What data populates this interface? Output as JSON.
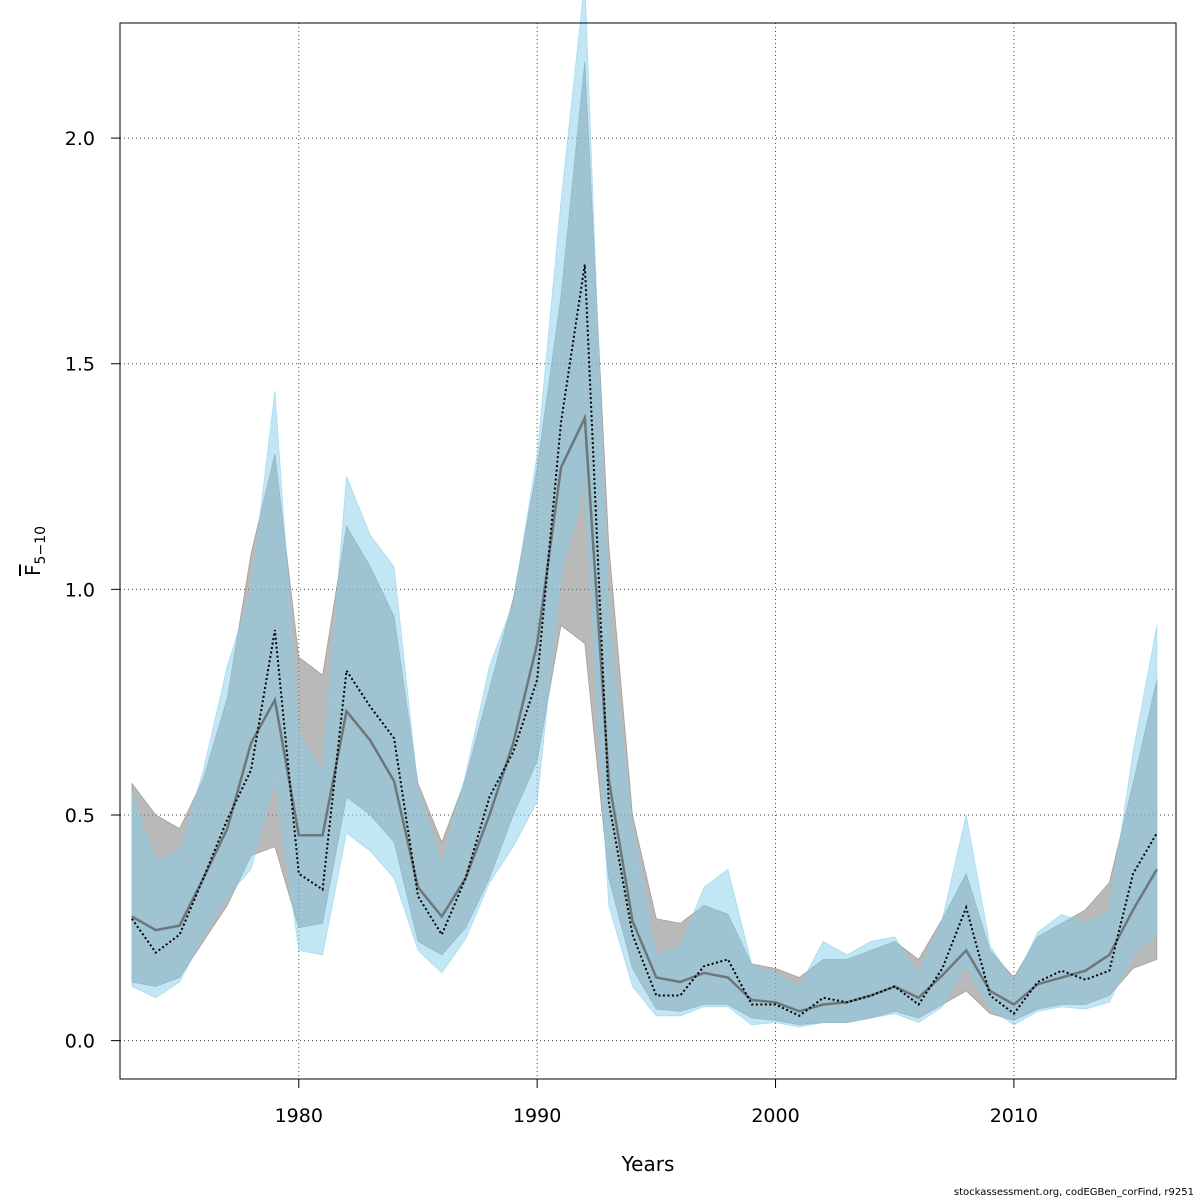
{
  "chart_data": {
    "type": "area",
    "title": "",
    "xlabel": "Years",
    "ylabel": {
      "symbol": "F",
      "subscript": "5−10"
    },
    "xlim": [
      1972.5,
      2016.8
    ],
    "ylim": [
      -0.085,
      2.255
    ],
    "xticks": [
      1980,
      1990,
      2000,
      2010
    ],
    "yticks": [
      0.0,
      0.5,
      1.0,
      1.5,
      2.0
    ],
    "ytick_labels": [
      "0.0",
      "0.5",
      "1.0",
      "1.5",
      "2.0"
    ],
    "grid": true,
    "x": [
      1973,
      1974,
      1975,
      1976,
      1977,
      1978,
      1979,
      1980,
      1981,
      1982,
      1983,
      1984,
      1985,
      1986,
      1987,
      1988,
      1989,
      1990,
      1991,
      1992,
      1993,
      1994,
      1995,
      1996,
      1997,
      1998,
      1999,
      2000,
      2001,
      2002,
      2003,
      2004,
      2005,
      2006,
      2007,
      2008,
      2009,
      2010,
      2011,
      2012,
      2013,
      2014,
      2015,
      2016
    ],
    "series": [
      {
        "name": "",
        "style": "solid",
        "color": "#555555",
        "band_color": "#808080",
        "estimate": [
          0.275,
          0.245,
          0.255,
          0.36,
          0.47,
          0.66,
          0.755,
          0.455,
          0.455,
          0.73,
          0.665,
          0.575,
          0.34,
          0.275,
          0.36,
          0.5,
          0.66,
          0.88,
          1.27,
          1.38,
          0.58,
          0.265,
          0.14,
          0.13,
          0.15,
          0.14,
          0.09,
          0.085,
          0.065,
          0.08,
          0.085,
          0.1,
          0.12,
          0.095,
          0.145,
          0.2,
          0.11,
          0.08,
          0.125,
          0.14,
          0.155,
          0.19,
          0.29,
          0.38
        ],
        "lower": [
          0.13,
          0.12,
          0.14,
          0.22,
          0.3,
          0.41,
          0.43,
          0.25,
          0.26,
          0.54,
          0.5,
          0.44,
          0.22,
          0.19,
          0.25,
          0.36,
          0.5,
          0.62,
          0.92,
          0.88,
          0.36,
          0.16,
          0.07,
          0.065,
          0.08,
          0.08,
          0.05,
          0.045,
          0.035,
          0.04,
          0.04,
          0.05,
          0.065,
          0.05,
          0.08,
          0.11,
          0.06,
          0.045,
          0.07,
          0.08,
          0.08,
          0.1,
          0.16,
          0.18
        ],
        "upper": [
          0.57,
          0.5,
          0.47,
          0.58,
          0.76,
          1.08,
          1.3,
          0.85,
          0.81,
          1.14,
          1.05,
          0.94,
          0.57,
          0.44,
          0.58,
          0.78,
          0.98,
          1.27,
          1.65,
          2.17,
          1.1,
          0.5,
          0.27,
          0.26,
          0.3,
          0.28,
          0.17,
          0.16,
          0.14,
          0.18,
          0.18,
          0.2,
          0.22,
          0.18,
          0.27,
          0.37,
          0.2,
          0.14,
          0.23,
          0.26,
          0.29,
          0.35,
          0.57,
          0.8
        ]
      },
      {
        "name": "",
        "style": "dotted",
        "color": "#000000",
        "band_color": "#87CEEB",
        "estimate": [
          0.27,
          0.195,
          0.235,
          0.36,
          0.49,
          0.6,
          0.91,
          0.37,
          0.335,
          0.82,
          0.74,
          0.67,
          0.32,
          0.235,
          0.36,
          0.54,
          0.64,
          0.8,
          1.37,
          1.72,
          0.53,
          0.235,
          0.1,
          0.1,
          0.165,
          0.18,
          0.08,
          0.08,
          0.055,
          0.095,
          0.085,
          0.1,
          0.12,
          0.08,
          0.16,
          0.295,
          0.1,
          0.06,
          0.13,
          0.155,
          0.135,
          0.155,
          0.37,
          0.46
        ],
        "lower": [
          0.12,
          0.095,
          0.13,
          0.23,
          0.32,
          0.38,
          0.58,
          0.2,
          0.19,
          0.46,
          0.42,
          0.36,
          0.2,
          0.15,
          0.225,
          0.35,
          0.43,
          0.53,
          1.03,
          1.23,
          0.3,
          0.12,
          0.055,
          0.055,
          0.075,
          0.075,
          0.035,
          0.04,
          0.03,
          0.04,
          0.04,
          0.05,
          0.06,
          0.04,
          0.075,
          0.165,
          0.07,
          0.035,
          0.065,
          0.075,
          0.07,
          0.085,
          0.19,
          0.24
        ],
        "upper": [
          0.55,
          0.4,
          0.42,
          0.6,
          0.83,
          1.0,
          1.44,
          0.68,
          0.6,
          1.25,
          1.12,
          1.05,
          0.56,
          0.39,
          0.59,
          0.83,
          0.97,
          1.3,
          1.86,
          2.35,
          0.94,
          0.47,
          0.19,
          0.21,
          0.34,
          0.38,
          0.17,
          0.15,
          0.12,
          0.22,
          0.19,
          0.22,
          0.23,
          0.15,
          0.27,
          0.5,
          0.21,
          0.13,
          0.24,
          0.28,
          0.26,
          0.29,
          0.64,
          0.92
        ]
      }
    ]
  },
  "footer_text": "stockassessment.org, codEGBen_corFind, r9251"
}
